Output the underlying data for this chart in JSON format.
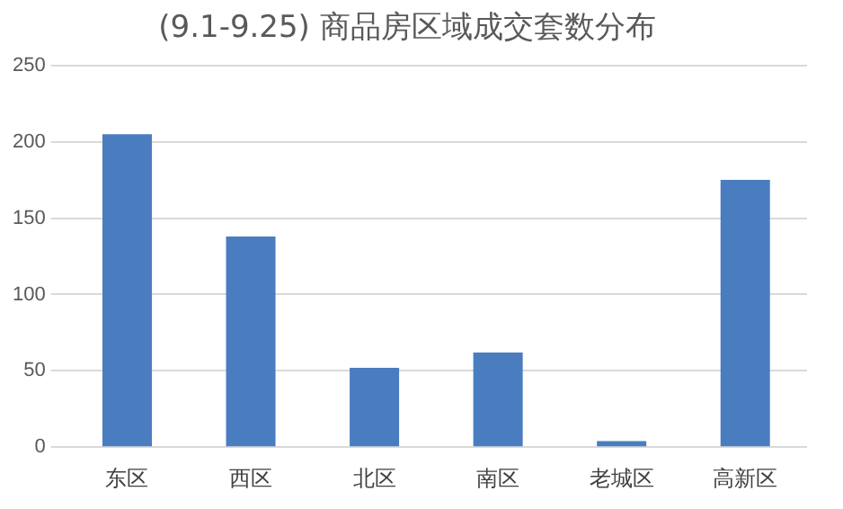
{
  "chart_data": {
    "type": "bar",
    "title": "(9.1-9.25) 商品房区域成交套数分布",
    "categories": [
      "东区",
      "西区",
      "北区",
      "南区",
      "老城区",
      "高新区"
    ],
    "values": [
      205,
      138,
      52,
      62,
      4,
      175
    ],
    "color": "#4a7dc0",
    "ylim": [
      0,
      250
    ],
    "yticks": [
      0,
      50,
      100,
      150,
      200,
      250
    ],
    "grid": "y"
  }
}
